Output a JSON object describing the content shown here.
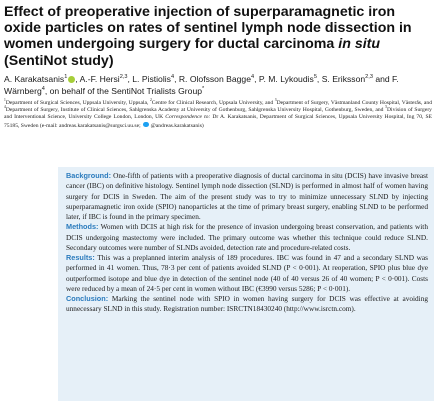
{
  "title": {
    "text": "Effect of preoperative injection of superparamagnetic iron oxide particles on rates of sentinel lymph node dissection in women undergoing surgery for ductal carcinoma",
    "italic": "in situ",
    "rest": "(SentiNot study)"
  },
  "authors": [
    {
      "name": "A. Karakatsanis",
      "sup": "1"
    },
    {
      "name": ", A.-F. Hersi",
      "sup": "2,3"
    },
    {
      "name": ", L. Pistiolis",
      "sup": "4"
    },
    {
      "name": ", R. Olofsson Bagge",
      "sup": "4"
    },
    {
      "name": ", P. M. Lykoudis",
      "sup": "5"
    },
    {
      "name": ", S. Eriksson",
      "sup": "2,3"
    },
    {
      "name": " and F. Wärnberg",
      "sup": "4"
    },
    {
      "name": ", on behalf of the SentiNot Trialists Group",
      "sup": "*"
    }
  ],
  "affiliations": [
    {
      "sup": "1",
      "text": "Department of Surgical Sciences, Uppsala University, Uppsala, "
    },
    {
      "sup": "2",
      "text": "Centre for Clinical Research, Uppsala University, and "
    },
    {
      "sup": "3",
      "text": "Department of Surgery, Västmanland County Hospital, Västerås, and "
    },
    {
      "sup": "4",
      "text": "Department of Surgery, Institute of Clinical Sciences, Sahlgrenska Academy at University of Gothenburg, Sahlgrenska University Hospital, Gothenburg, Sweden, and "
    },
    {
      "sup": "5",
      "text": "Division of Surgery and Interventional Science, University College London, London, UK"
    }
  ],
  "correspondence": {
    "label": "Correspondence to:",
    "text": "Dr A. Karakatsanis, Department of Surgical Sciences, Uppsala University Hospital, Ing 70, SE 75185, Sweden (e-mail: andreas.karakatsanis@surgsci.uu.se;",
    "handle": "@andreas.karakatsanis)"
  },
  "abstract": [
    {
      "label": "Background:",
      "text": "One-fifth of patients with a preoperative diagnosis of ductal carcinoma in situ (DCIS) have invasive breast cancer (IBC) on definitive histology. Sentinel lymph node dissection (SLND) is performed in almost half of women having surgery for DCIS in Sweden. The aim of the present study was to try to minimize unnecessary SLND by injecting superparamagnetic iron oxide (SPIO) nanoparticles at the time of primary breast surgery, enabling SLND to be performed later, if IBC is found in the primary specimen."
    },
    {
      "label": "Methods:",
      "text": "Women with DCIS at high risk for the presence of invasion undergoing breast conservation, and patients with DCIS undergoing mastectomy were included. The primary outcome was whether this technique could reduce SLND. Secondary outcomes were number of SLNDs avoided, detection rate and procedure-related costs."
    },
    {
      "label": "Results:",
      "text": "This was a preplanned interim analysis of 189 procedures. IBC was found in 47 and a secondary SLND was performed in 41 women. Thus, 78·3 per cent of patients avoided SLND (P < 0·001). At reoperation, SPIO plus blue dye outperformed isotope and blue dye in detection of the sentinel node (40 of 40 versus 26 of 40 women; P < 0·001). Costs were reduced by a mean of 24·5 per cent in women without IBC (€3990 versus 5286; P < 0·001)."
    },
    {
      "label": "Conclusion:",
      "text": "Marking the sentinel node with SPIO in women having surgery for DCIS was effective at avoiding unnecessary SLND in this study. Registration number: ISRCTN18430240 (http://www.isrctn.com)."
    }
  ]
}
